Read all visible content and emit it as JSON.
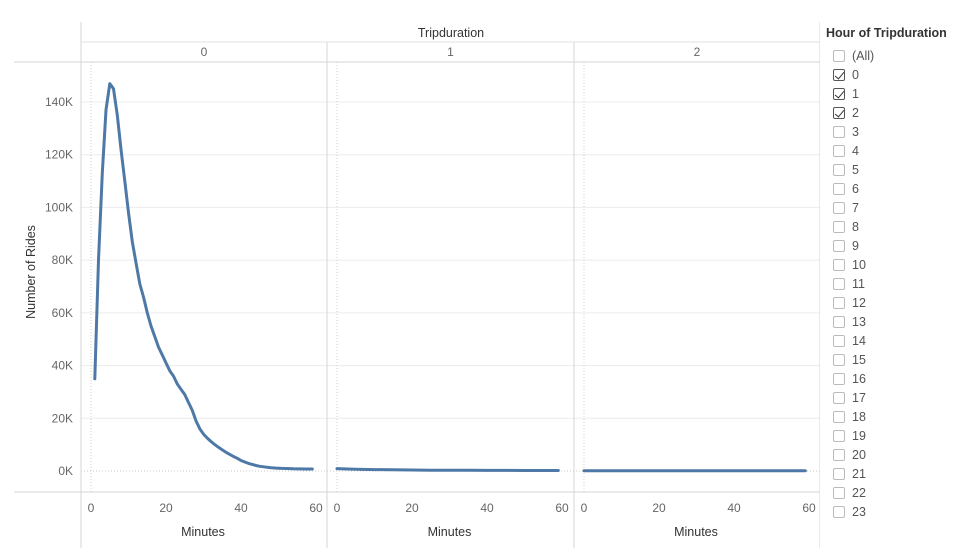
{
  "chart_data": {
    "type": "line",
    "title": "",
    "column_header": "Tripduration",
    "ylabel": "Number of Rides",
    "ylim": [
      0,
      150000
    ],
    "yticks": [
      0,
      20000,
      40000,
      60000,
      80000,
      100000,
      120000,
      140000
    ],
    "ytick_labels": [
      "0K",
      "20K",
      "40K",
      "60K",
      "80K",
      "100K",
      "120K",
      "140K"
    ],
    "xlabel": "Minutes",
    "xlim": [
      -3,
      62
    ],
    "xticks": [
      0,
      20,
      40,
      60
    ],
    "xtick_labels": [
      "0",
      "20",
      "40",
      "60"
    ],
    "line_color": "#4e79a7",
    "grid": true,
    "panels": [
      {
        "label": "0",
        "x": [
          1,
          2,
          3,
          4,
          5,
          6,
          7,
          8,
          9,
          10,
          11,
          12,
          13,
          14,
          15,
          16,
          17,
          18,
          19,
          20,
          21,
          22,
          23,
          24,
          25,
          26,
          27,
          28,
          29,
          30,
          31,
          32,
          33,
          34,
          35,
          36,
          37,
          38,
          39,
          40,
          41,
          42,
          43,
          44,
          45,
          46,
          47,
          48,
          49,
          50,
          51,
          52,
          53,
          54,
          55,
          56,
          57,
          58,
          59
        ],
        "y": [
          35000,
          80000,
          113000,
          137000,
          147000,
          145000,
          135000,
          122000,
          110000,
          98000,
          87000,
          79000,
          71000,
          66000,
          60000,
          55000,
          51000,
          47000,
          44000,
          41000,
          38000,
          36000,
          33000,
          31000,
          29000,
          26000,
          23000,
          19000,
          16000,
          14000,
          12500,
          11200,
          10000,
          9000,
          8000,
          7100,
          6300,
          5500,
          4800,
          4000,
          3400,
          2900,
          2500,
          2100,
          1800,
          1600,
          1400,
          1250,
          1150,
          1050,
          1000,
          950,
          900,
          850,
          800,
          780,
          760,
          750,
          740
        ]
      },
      {
        "label": "1",
        "x": [
          0,
          5,
          10,
          15,
          20,
          25,
          30,
          35,
          40,
          45,
          50,
          55,
          59
        ],
        "y": [
          900,
          700,
          550,
          450,
          380,
          320,
          280,
          250,
          230,
          210,
          200,
          190,
          180
        ]
      },
      {
        "label": "2",
        "x": [
          0,
          5,
          10,
          15,
          20,
          25,
          30,
          35,
          40,
          45,
          50,
          55,
          59
        ],
        "y": [
          120,
          110,
          100,
          95,
          90,
          85,
          80,
          75,
          70,
          68,
          65,
          62,
          60
        ]
      }
    ]
  },
  "legend": {
    "title": "Hour of Tripduration",
    "items": [
      {
        "label": "(All)",
        "checked": false
      },
      {
        "label": "0",
        "checked": true
      },
      {
        "label": "1",
        "checked": true
      },
      {
        "label": "2",
        "checked": true
      },
      {
        "label": "3",
        "checked": false
      },
      {
        "label": "4",
        "checked": false
      },
      {
        "label": "5",
        "checked": false
      },
      {
        "label": "6",
        "checked": false
      },
      {
        "label": "7",
        "checked": false
      },
      {
        "label": "8",
        "checked": false
      },
      {
        "label": "9",
        "checked": false
      },
      {
        "label": "10",
        "checked": false
      },
      {
        "label": "11",
        "checked": false
      },
      {
        "label": "12",
        "checked": false
      },
      {
        "label": "13",
        "checked": false
      },
      {
        "label": "14",
        "checked": false
      },
      {
        "label": "15",
        "checked": false
      },
      {
        "label": "16",
        "checked": false
      },
      {
        "label": "17",
        "checked": false
      },
      {
        "label": "18",
        "checked": false
      },
      {
        "label": "19",
        "checked": false
      },
      {
        "label": "20",
        "checked": false
      },
      {
        "label": "21",
        "checked": false
      },
      {
        "label": "22",
        "checked": false
      },
      {
        "label": "23",
        "checked": false
      }
    ]
  }
}
